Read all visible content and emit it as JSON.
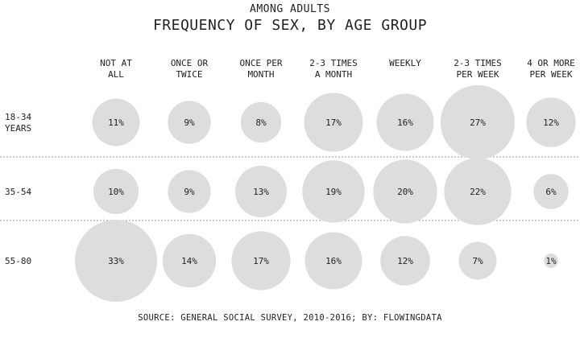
{
  "chart_data": {
    "type": "bubble-matrix",
    "subtitle": "AMONG ADULTS",
    "title": "FREQUENCY OF SEX, BY AGE GROUP",
    "source": "SOURCE: GENERAL SOCIAL SURVEY, 2010-2016; BY: FLOWINGDATA",
    "columns": [
      [
        "NOT AT",
        "ALL"
      ],
      [
        "ONCE OR",
        "TWICE"
      ],
      [
        "ONCE PER",
        "MONTH"
      ],
      [
        "2-3 TIMES",
        "A MONTH"
      ],
      [
        "WEEKLY"
      ],
      [
        "2-3 TIMES",
        "PER WEEK"
      ],
      [
        "4 OR MORE",
        "PER WEEK"
      ]
    ],
    "rows": [
      {
        "label": [
          "18-34",
          "YEARS"
        ],
        "values": [
          11,
          9,
          8,
          17,
          16,
          27,
          12
        ]
      },
      {
        "label": [
          "35-54"
        ],
        "values": [
          10,
          9,
          13,
          19,
          20,
          22,
          6
        ]
      },
      {
        "label": [
          "55-80"
        ],
        "values": [
          33,
          14,
          17,
          16,
          12,
          7,
          1
        ]
      }
    ],
    "value_suffix": "%",
    "bubble_color": "#dddddd",
    "divider_color": "#999999"
  }
}
